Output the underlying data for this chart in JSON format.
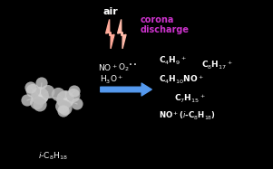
{
  "background_color": "#000000",
  "air_text": "air",
  "air_color": "#ffffff",
  "corona_line1": "corona",
  "corona_line2": "discharge",
  "corona_color": "#cc33cc",
  "product_color": "#ffffff",
  "label_color": "#ffffff",
  "arrow_color": "#5599ee",
  "lightning_color1": "#ffaa99",
  "lightning_color2": "#ffbbaa",
  "figsize": [
    3.01,
    1.87
  ],
  "dpi": 100
}
